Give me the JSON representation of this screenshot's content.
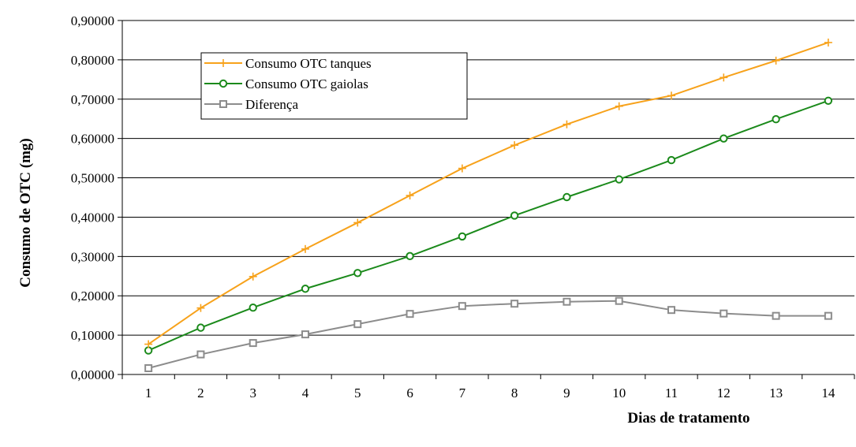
{
  "chart_data": {
    "type": "line",
    "xlabel": "Dias de tratamento",
    "ylabel": "Consumo de OTC (mg)",
    "categories": [
      "1",
      "2",
      "3",
      "4",
      "5",
      "6",
      "7",
      "8",
      "9",
      "10",
      "11",
      "12",
      "13",
      "14"
    ],
    "ylim": [
      0,
      0.9
    ],
    "yticks": [
      "0,00000",
      "0,10000",
      "0,20000",
      "0,30000",
      "0,40000",
      "0,50000",
      "0,60000",
      "0,70000",
      "0,80000",
      "0,90000"
    ],
    "grid": true,
    "legend_position": "top-left",
    "series": [
      {
        "name": "Consumo OTC tanques",
        "color": "#F7A21B",
        "marker": "plus",
        "values": [
          0.077,
          0.169,
          0.249,
          0.319,
          0.386,
          0.455,
          0.524,
          0.583,
          0.636,
          0.682,
          0.709,
          0.755,
          0.798,
          0.844
        ]
      },
      {
        "name": "Consumo OTC gaiolas",
        "color": "#1B8A1B",
        "marker": "circle",
        "values": [
          0.061,
          0.119,
          0.17,
          0.218,
          0.258,
          0.301,
          0.351,
          0.404,
          0.451,
          0.496,
          0.545,
          0.6,
          0.649,
          0.696
        ]
      },
      {
        "name": "Diferença",
        "color": "#8C8C8C",
        "marker": "square",
        "values": [
          0.016,
          0.051,
          0.08,
          0.102,
          0.128,
          0.154,
          0.174,
          0.18,
          0.185,
          0.187,
          0.164,
          0.155,
          0.149,
          0.149
        ]
      }
    ]
  }
}
